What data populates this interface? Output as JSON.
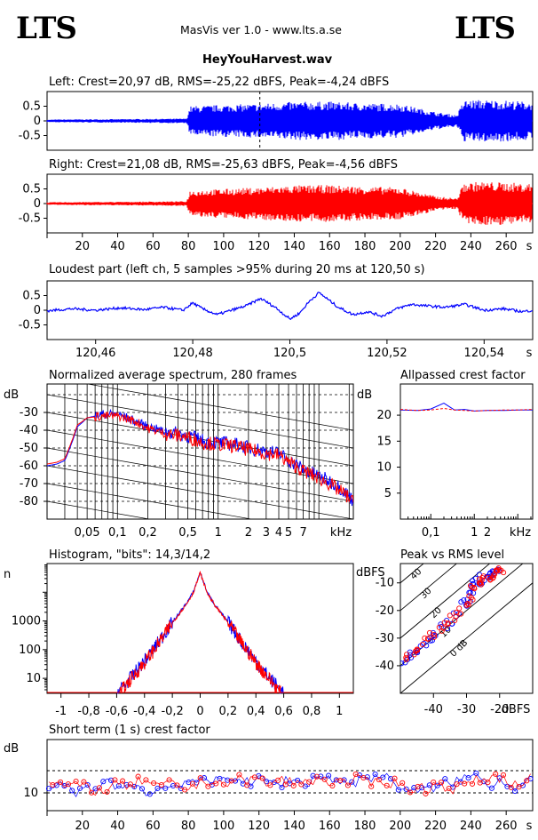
{
  "header": {
    "logo_left": "LTS",
    "logo_right": "LTS",
    "app_title": "MasVis ver 1.0 - www.lts.a.se",
    "file_name": "HeyYouHarvest.wav"
  },
  "colors": {
    "left": "#0000ff",
    "right": "#ff0000",
    "grid": "#000000"
  },
  "chart_data": [
    {
      "id": "left_waveform",
      "type": "area",
      "title": "Left: Crest=20,97 dB, RMS=-25,22 dBFS, Peak=-4,24 dBFS",
      "ylim": [
        -1,
        1
      ],
      "yticks": [
        "0.5",
        "0",
        "-0.5"
      ],
      "xlim": [
        0,
        275
      ],
      "marker_x": 120.5,
      "envelope": {
        "t": [
          0,
          5,
          40,
          79,
          81,
          100,
          120,
          140,
          160,
          180,
          200,
          220,
          232,
          236,
          245,
          260,
          275
        ],
        "amp": [
          0.04,
          0.05,
          0.06,
          0.08,
          0.5,
          0.55,
          0.58,
          0.65,
          0.66,
          0.6,
          0.58,
          0.3,
          0.2,
          0.7,
          0.72,
          0.7,
          0.65
        ]
      }
    },
    {
      "id": "right_waveform",
      "type": "area",
      "title": "Right: Crest=21,08 dB, RMS=-25,63 dBFS, Peak=-4,56 dBFS",
      "ylim": [
        -1,
        1
      ],
      "yticks": [
        "0.5",
        "0",
        "-0.5"
      ],
      "xlim": [
        0,
        275
      ],
      "xticks": [
        "20",
        "40",
        "60",
        "80",
        "100",
        "120",
        "140",
        "160",
        "180",
        "200",
        "220",
        "240",
        "260"
      ],
      "xunit": "s",
      "envelope": {
        "t": [
          0,
          5,
          40,
          79,
          81,
          100,
          120,
          140,
          160,
          180,
          200,
          220,
          232,
          236,
          245,
          260,
          275
        ],
        "amp": [
          0.04,
          0.05,
          0.06,
          0.08,
          0.45,
          0.5,
          0.55,
          0.62,
          0.63,
          0.58,
          0.55,
          0.25,
          0.18,
          0.7,
          0.75,
          0.72,
          0.68
        ]
      }
    },
    {
      "id": "loudest_part",
      "type": "line",
      "title": "Loudest part (left  ch, 5 samples >95% during 20 ms at 120,50 s)",
      "ylim": [
        -1,
        1
      ],
      "yticks": [
        "0.5",
        "0",
        "-0.5"
      ],
      "xlim": [
        120.45,
        120.55
      ],
      "xticks": [
        "120,46",
        "120,48",
        "120,5",
        "120,52",
        "120,54"
      ],
      "xunit": "s",
      "series": [
        {
          "x": [
            120.45,
            120.455,
            120.46,
            120.465,
            120.47,
            120.474,
            120.478,
            120.48,
            120.482,
            120.485,
            120.488,
            120.491,
            120.494,
            120.497,
            120.5,
            120.502,
            120.504,
            120.506,
            120.508,
            120.51,
            120.513,
            120.516,
            120.519,
            120.522,
            120.525,
            120.528,
            120.532,
            120.536,
            120.54,
            120.544,
            120.548,
            120.55
          ],
          "y": [
            -0.02,
            0.05,
            0.0,
            0.08,
            0.02,
            0.1,
            0.0,
            0.25,
            0.05,
            -0.15,
            0.0,
            0.15,
            0.4,
            0.1,
            -0.3,
            -0.1,
            0.3,
            0.6,
            0.35,
            0.1,
            -0.15,
            -0.05,
            -0.2,
            0.05,
            0.2,
            0.15,
            0.1,
            0.2,
            0.0,
            0.05,
            -0.05,
            0.0
          ]
        }
      ]
    },
    {
      "id": "spectrum",
      "type": "line",
      "title": "Normalized average spectrum, 280 frames",
      "ylabel": "dB",
      "ylim": [
        -90,
        -14
      ],
      "yticks": [
        "-30",
        "-40",
        "-50",
        "-60",
        "-70",
        "-80"
      ],
      "xscale": "log",
      "xlim": [
        0.02,
        22
      ],
      "xticks": [
        "0,05",
        "0,1",
        "0,2",
        "0,5",
        "1",
        "2",
        "3",
        "4",
        "5",
        "7"
      ],
      "xunit": "kHz",
      "series": [
        {
          "name": "left",
          "x": [
            0.02,
            0.025,
            0.03,
            0.04,
            0.05,
            0.07,
            0.1,
            0.15,
            0.2,
            0.3,
            0.5,
            0.7,
            1,
            1.5,
            2,
            3,
            4,
            5,
            7,
            10,
            15,
            20,
            22
          ],
          "y": [
            -60,
            -59,
            -57,
            -38,
            -33,
            -31,
            -31,
            -35,
            -38,
            -41,
            -43,
            -46,
            -47,
            -48,
            -50,
            -52,
            -53,
            -57,
            -62,
            -66,
            -71,
            -77,
            -80
          ]
        },
        {
          "name": "right",
          "x": [
            0.02,
            0.025,
            0.03,
            0.04,
            0.05,
            0.07,
            0.1,
            0.15,
            0.2,
            0.3,
            0.5,
            0.7,
            1,
            1.5,
            2,
            3,
            4,
            5,
            7,
            10,
            15,
            20,
            22
          ],
          "y": [
            -59,
            -58,
            -56,
            -37,
            -33,
            -32,
            -32,
            -35,
            -39,
            -42,
            -44,
            -47,
            -48,
            -49,
            -51,
            -53,
            -54,
            -58,
            -63,
            -67,
            -73,
            -78,
            -81
          ]
        }
      ]
    },
    {
      "id": "allpassed_crest",
      "type": "line",
      "title": "Allpassed crest factor",
      "ylabel": "dB",
      "ylim": [
        0,
        26
      ],
      "yticks": [
        "20",
        "15",
        "10",
        "5"
      ],
      "xscale": "log",
      "xlim": [
        0.02,
        22
      ],
      "xticks": [
        "0,1",
        "1",
        "2"
      ],
      "xunit": "kHz",
      "series": [
        {
          "name": "left",
          "x": [
            0.02,
            0.05,
            0.1,
            0.2,
            0.35,
            0.6,
            1,
            2,
            5,
            10,
            22
          ],
          "y": [
            21.0,
            20.9,
            21.2,
            22.3,
            21.0,
            21.1,
            20.8,
            20.9,
            20.9,
            21.0,
            21.0
          ]
        },
        {
          "name": "right",
          "x": [
            0.02,
            0.05,
            0.1,
            0.2,
            0.35,
            0.6,
            1,
            2,
            5,
            10,
            22
          ],
          "y": [
            21.1,
            20.9,
            21.0,
            21.3,
            21.0,
            20.9,
            20.8,
            20.9,
            21.0,
            21.0,
            21.1
          ]
        }
      ]
    },
    {
      "id": "histogram",
      "type": "line",
      "title": "Histogram, \"bits\": 14,3/14,2",
      "ylabel": "n",
      "yscale": "log",
      "ylim": [
        3,
        100000
      ],
      "yticks": [
        "1000",
        "100",
        "10"
      ],
      "xlim": [
        -1.1,
        1.1
      ],
      "xticks": [
        "-1",
        "-0,8",
        "-0,6",
        "-0,4",
        "-0,2",
        "0",
        "0,2",
        "0,4",
        "0,6",
        "0,8",
        "1"
      ],
      "series": [
        {
          "name": "left",
          "x": [
            -0.6,
            -0.5,
            -0.4,
            -0.3,
            -0.2,
            -0.1,
            -0.05,
            0,
            0.05,
            0.1,
            0.2,
            0.3,
            0.4,
            0.5,
            0.6
          ],
          "y": [
            3,
            10,
            40,
            180,
            900,
            4000,
            10000,
            50000,
            10000,
            4000,
            900,
            180,
            40,
            10,
            3
          ]
        },
        {
          "name": "right",
          "x": [
            -0.58,
            -0.5,
            -0.4,
            -0.3,
            -0.2,
            -0.1,
            -0.05,
            0,
            0.05,
            0.1,
            0.2,
            0.3,
            0.4,
            0.5,
            0.58
          ],
          "y": [
            3,
            9,
            35,
            160,
            850,
            3800,
            9500,
            48000,
            9500,
            3800,
            850,
            160,
            35,
            9,
            3
          ]
        }
      ]
    },
    {
      "id": "peak_vs_rms",
      "type": "scatter",
      "title": "Peak vs RMS level",
      "ylabel": "dBFS",
      "xlabel": "dBFS",
      "xlim": [
        -50,
        -10
      ],
      "ylim": [
        -50,
        -3
      ],
      "xticks": [
        "-40",
        "-30",
        "-20"
      ],
      "yticks": [
        "-10",
        "-20",
        "-30",
        "-40"
      ],
      "crest_lines": [
        "40",
        "30",
        "20",
        "10",
        "0 dB"
      ],
      "series": [
        {
          "name": "left",
          "x": [
            -49,
            -47,
            -45,
            -43,
            -41,
            -39,
            -37,
            -35,
            -33,
            -31,
            -30,
            -29,
            -28,
            -27,
            -26,
            -25,
            -24,
            -23,
            -22,
            -21
          ],
          "y": [
            -38,
            -36,
            -34,
            -32,
            -30,
            -28,
            -26,
            -24,
            -21,
            -18,
            -16,
            -13,
            -11,
            -10,
            -9,
            -8,
            -7.5,
            -7,
            -6.5,
            -6
          ]
        },
        {
          "name": "right",
          "x": [
            -48,
            -46,
            -44,
            -42,
            -40,
            -38,
            -36,
            -34,
            -32,
            -30,
            -29,
            -28,
            -27,
            -26,
            -25,
            -24,
            -23,
            -22,
            -21,
            -20
          ],
          "y": [
            -37,
            -35,
            -33,
            -31,
            -29,
            -27,
            -25,
            -23,
            -20,
            -17,
            -15,
            -12,
            -11,
            -10,
            -9,
            -8.5,
            -7.5,
            -7,
            -6.5,
            -5.5
          ]
        }
      ]
    },
    {
      "id": "short_term_crest",
      "type": "scatter",
      "title": "Short term (1 s) crest factor",
      "ylabel": "dB",
      "ylim": [
        6,
        22
      ],
      "yticks": [
        "10"
      ],
      "xlim": [
        0,
        275
      ],
      "xticks": [
        "20",
        "40",
        "60",
        "80",
        "100",
        "120",
        "140",
        "160",
        "180",
        "200",
        "220",
        "240",
        "260"
      ],
      "xunit": "s",
      "series": [
        {
          "name": "left",
          "x": [
            2,
            10,
            18,
            26,
            34,
            42,
            50,
            58,
            66,
            74,
            82,
            90,
            98,
            106,
            114,
            122,
            130,
            138,
            146,
            154,
            162,
            170,
            178,
            186,
            194,
            202,
            210,
            218,
            226,
            234,
            242,
            250,
            258,
            266,
            272
          ],
          "y": [
            11,
            12,
            10,
            11,
            13,
            11,
            12,
            10,
            11,
            12,
            13,
            12,
            13,
            14,
            12,
            13,
            12,
            13,
            12,
            14,
            13,
            12,
            13,
            14,
            13,
            11,
            10,
            11,
            12,
            13,
            14,
            12,
            13,
            11,
            14
          ]
        },
        {
          "name": "right",
          "x": [
            6,
            14,
            22,
            30,
            38,
            46,
            54,
            62,
            70,
            78,
            86,
            94,
            102,
            110,
            118,
            126,
            134,
            142,
            150,
            158,
            166,
            174,
            182,
            190,
            198,
            206,
            214,
            222,
            230,
            238,
            246,
            254,
            262,
            270
          ],
          "y": [
            12,
            11,
            12,
            10,
            12,
            11,
            13,
            11,
            12,
            11,
            12,
            13,
            12,
            13,
            13,
            12,
            13,
            12,
            13,
            13,
            12,
            13,
            12,
            13,
            12,
            11,
            11,
            12,
            11,
            12,
            13,
            14,
            12,
            13
          ]
        }
      ]
    }
  ]
}
